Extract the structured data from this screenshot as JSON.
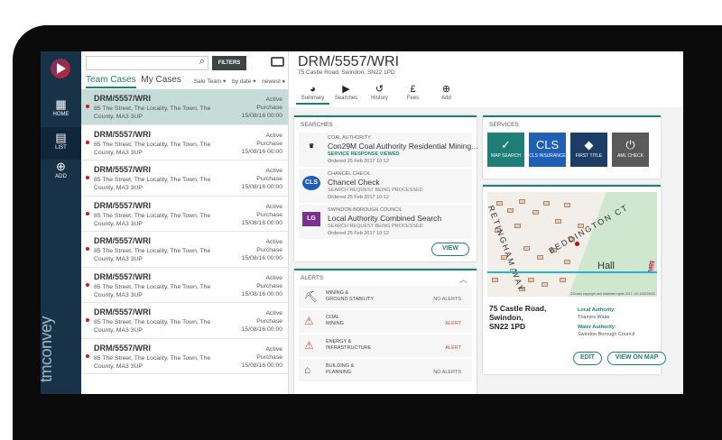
{
  "sidebar": {
    "items": [
      {
        "label": "HOME",
        "icon": "grid-icon"
      },
      {
        "label": "LIST",
        "icon": "list-icon"
      },
      {
        "label": "ADD",
        "icon": "plus-circle-icon"
      }
    ],
    "brand": "tmconvey"
  },
  "list": {
    "search_placeholder": "",
    "filters_label": "FILTERS",
    "tabs": [
      "Team Cases",
      "My Cases"
    ],
    "sorts": [
      "Sale Team ▾",
      "by date ▾",
      "newest ♦"
    ],
    "rows": [
      {
        "ref": "DRM/5557/WRI",
        "address": "85 The Street, The Locality, The Town, The County, MA3 3UP",
        "status": "Active",
        "type": "Purchase",
        "date": "15/08/16 00:00"
      },
      {
        "ref": "DRM/5557/WRI",
        "address": "85 The Street, The Locality, The Town, The County, MA3 3UP",
        "status": "Active",
        "type": "Purchase",
        "date": "15/08/16 00:00"
      },
      {
        "ref": "DRM/5557/WRI",
        "address": "85 The Street, The Locality, The Town, The County, MA3 3UP",
        "status": "Active",
        "type": "Purchase",
        "date": "15/08/16 00:00"
      },
      {
        "ref": "DRM/5557/WRI",
        "address": "85 The Street, The Locality, The Town, The County, MA3 3UP",
        "status": "Active",
        "type": "Purchase",
        "date": "15/08/16 00:00"
      },
      {
        "ref": "DRM/5557/WRI",
        "address": "85 The Street, The Locality, The Town, The County, MA3 3UP",
        "status": "Active",
        "type": "Purchase",
        "date": "15/08/16 00:00"
      },
      {
        "ref": "DRM/5557/WRI",
        "address": "85 The Street, The Locality, The Town, The County, MA3 3UP",
        "status": "Active",
        "type": "Purchase",
        "date": "15/08/16 00:00"
      },
      {
        "ref": "DRM/5557/WRI",
        "address": "85 The Street, The Locality, The Town, The County, MA3 3UP",
        "status": "Active",
        "type": "Purchase",
        "date": "15/08/16 00:00"
      },
      {
        "ref": "DRM/5557/WRI",
        "address": "85 The Street, The Locality, The Town, The County, MA3 3UP",
        "status": "Active",
        "type": "Purchase",
        "date": "15/08/16 00:00"
      }
    ]
  },
  "header": {
    "title": "DRM/5557/WRI",
    "subtitle": "75 Castle Road, Swindon, SN22 1PD",
    "actions": [
      "Summary",
      "Searches",
      "History",
      "Fees",
      "Add"
    ]
  },
  "searches": {
    "heading": "SEARCHES",
    "items": [
      {
        "org": "COAL AUTHORITY",
        "name": "Con29M Coal Authority Residential Mining...",
        "status": "SERVICE RESPONSE VIEWED",
        "ordered": "Ordered 25 Feb 2017 10:12"
      },
      {
        "org": "CHANCEL CHECK",
        "name": "Chancel Check",
        "status": "SEARCH REQUEST BEING PROCESSED",
        "ordered": "Ordered 25 Feb 2017 10:12",
        "logo": "CLS"
      },
      {
        "org": "SWINDON BOROUGH COUNCIL",
        "name": "Local Authority Combined Search",
        "status": "SEARCH REQUEST BEING PROCESSED",
        "ordered": "Ordered 25 Feb 2017 10:12",
        "logo": "Local Government"
      }
    ],
    "view_label": "VIEW"
  },
  "alerts": {
    "heading": "ALERTS",
    "items": [
      {
        "label": "MINING &\nGROUND STABILITY",
        "value": "NO ALERTS"
      },
      {
        "label": "COAL\nMINING",
        "value": "ALERT"
      },
      {
        "label": "ENERGY &\nINFRASTRUCTURE",
        "value": "ALERT"
      },
      {
        "label": "BUILDING &\nPLANNING",
        "value": "NO ALERTS"
      }
    ]
  },
  "services": {
    "heading": "SERVICES",
    "items": [
      {
        "label": "MAP SEARCH",
        "color": "#1e7f78"
      },
      {
        "label": "CLS INSURANCE",
        "color": "#1f5fb5"
      },
      {
        "label": "FIRST TITLE",
        "color": "#1b3d66"
      },
      {
        "label": "AML CHECK",
        "color": "#5a5a5a"
      }
    ]
  },
  "property": {
    "map": {
      "roads": [
        "BEDDINGTON CT",
        "RETINGHAM WAY"
      ],
      "place": "Hall",
      "road_badge": "A491",
      "copyright": "©Crown copyright and database rights 2017. OS 100029422"
    },
    "address": [
      "75 Castle Road,",
      "Swindon,",
      "SN22 1PD"
    ],
    "local_authority_label": "Local Authority:",
    "local_authority": "Thames Water",
    "water_authority_label": "Water Authority:",
    "water_authority": "Swindon Borough Council",
    "edit_label": "EDIT",
    "view_map_label": "VIEW ON MAP"
  },
  "colors": {
    "accent": "#1e7f78",
    "sidebar": "#183247",
    "alert": "#d94a3a",
    "selected_row": "#c5dcd8"
  }
}
